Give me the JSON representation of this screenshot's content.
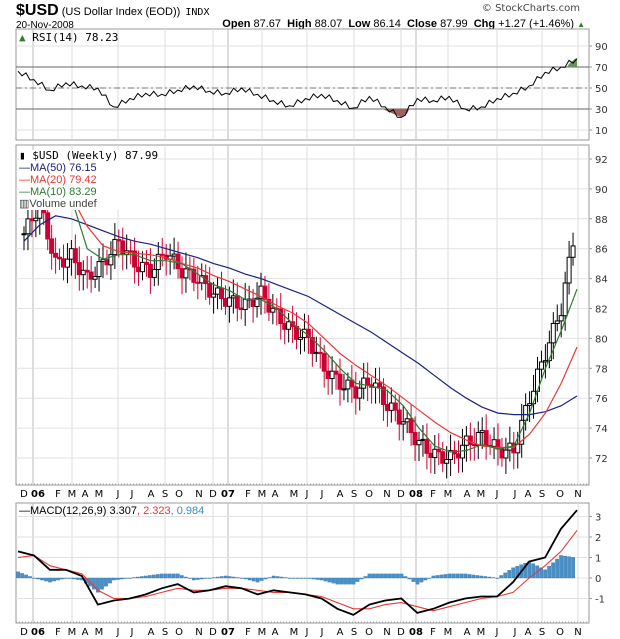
{
  "header": {
    "symbol": "$USD",
    "name": "(US Dollar Index (EOD))",
    "market": "INDX",
    "date": "20-Nov-2008",
    "copyright": "© StockCharts.com",
    "open_label": "Open",
    "open": "87.67",
    "high_label": "High",
    "high": "88.07",
    "low_label": "Low",
    "low": "86.14",
    "close_label": "Close",
    "close": "87.99",
    "chg_label": "Chg",
    "chg": "+1.27 (+1.46%)",
    "chg_icon": "up-triangle-icon"
  },
  "rsi_panel": {
    "legend": "RSI(14) 78.23",
    "y_ticks": [
      "90",
      "70",
      "50",
      "30",
      "10"
    ]
  },
  "price_panel": {
    "legend_main": "$USD (Weekly) 87.99",
    "legend_ma50": "MA(50) 76.15",
    "legend_ma20": "MA(20) 79.42",
    "legend_ma10": "MA(10) 83.29",
    "legend_volume": "Volume undef",
    "y_ticks": [
      "92",
      "90",
      "88",
      "86",
      "84",
      "82",
      "80",
      "78",
      "76",
      "74",
      "72"
    ]
  },
  "macd_panel": {
    "legend_macd": "MACD(12,26,9) 3.307",
    "legend_signal": ", 2.323",
    "legend_hist": ", 0.984",
    "y_ticks": [
      "3",
      "2",
      "1",
      "0",
      "-1"
    ]
  },
  "x_axis": {
    "labels": [
      "D",
      "06",
      "F",
      "M",
      "A",
      "M",
      "J",
      "J",
      "A",
      "S",
      "O",
      "N",
      "D",
      "07",
      "F",
      "M",
      "A",
      "M",
      "J",
      "J",
      "A",
      "S",
      "O",
      "N",
      "D",
      "08",
      "F",
      "M",
      "A",
      "M",
      "J",
      "J",
      "A",
      "S",
      "O",
      "N"
    ]
  },
  "colors": {
    "ma50": "#1a237e",
    "ma20": "#e53935",
    "ma10": "#2e7d32",
    "down_candle": "#cc0033",
    "up_candle": "#000000",
    "macd": "#000000",
    "signal": "#e53935",
    "histogram": "#4a90c8",
    "rsi_over": "#6b8f5e",
    "rsi_under": "#a06060"
  },
  "chart_data": [
    {
      "type": "line",
      "title": "RSI(14) 78.23",
      "ylim": [
        0,
        100
      ],
      "reference_lines": [
        70,
        50,
        30
      ],
      "x": [
        "2005-12",
        "2006-01",
        "2006-02",
        "2006-03",
        "2006-04",
        "2006-05",
        "2006-06",
        "2006-07",
        "2006-08",
        "2006-09",
        "2006-10",
        "2006-11",
        "2006-12",
        "2007-01",
        "2007-02",
        "2007-03",
        "2007-04",
        "2007-05",
        "2007-06",
        "2007-07",
        "2007-08",
        "2007-09",
        "2007-10",
        "2007-11",
        "2007-12",
        "2008-01",
        "2008-02",
        "2008-03",
        "2008-04",
        "2008-05",
        "2008-06",
        "2008-07",
        "2008-08",
        "2008-09",
        "2008-10",
        "2008-11"
      ],
      "values": [
        66,
        58,
        48,
        55,
        52,
        50,
        32,
        40,
        45,
        44,
        48,
        52,
        47,
        45,
        50,
        44,
        38,
        33,
        40,
        44,
        38,
        31,
        42,
        32,
        22,
        40,
        38,
        42,
        30,
        32,
        40,
        45,
        52,
        65,
        70,
        78
      ]
    },
    {
      "type": "candlestick",
      "title": "$USD (Weekly) 87.99",
      "ylim": [
        70.5,
        93
      ],
      "last_close": 87.99,
      "series": [
        {
          "name": "MA(50)",
          "last": 76.15
        },
        {
          "name": "MA(20)",
          "last": 79.42
        },
        {
          "name": "MA(10)",
          "last": 83.29
        }
      ],
      "approx_monthly_close": [
        87,
        89,
        85,
        85.5,
        84,
        85,
        86.5,
        85,
        84.5,
        85.8,
        84.5,
        84,
        83,
        82.5,
        82.2,
        83,
        81.5,
        80.5,
        80,
        78,
        77,
        76.5,
        77.2,
        75.5,
        74.5,
        73,
        72.2,
        72,
        73,
        73.5,
        72.5,
        72.5,
        76,
        79,
        82,
        88
      ]
    },
    {
      "type": "line",
      "title": "MACD(12,26,9) 3.307, 2.323, 0.984",
      "ylim": [
        -1.7,
        3.4
      ],
      "series": [
        {
          "name": "MACD",
          "last": 3.307
        },
        {
          "name": "Signal",
          "last": 2.323
        },
        {
          "name": "Histogram",
          "last": 0.984
        }
      ]
    }
  ]
}
